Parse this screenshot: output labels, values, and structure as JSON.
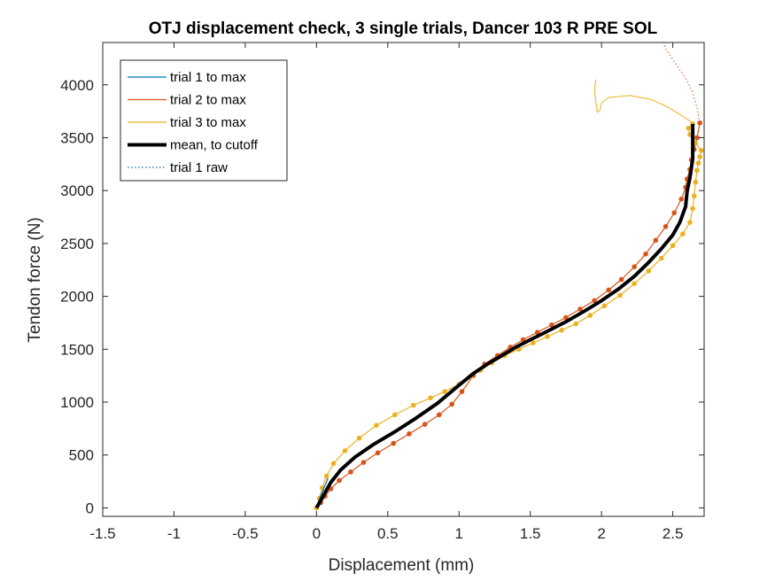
{
  "chart_data": {
    "type": "line",
    "title": "OTJ displacement check, 3 single trials, Dancer 103 R PRE SOL",
    "xlabel": "Displacement (mm)",
    "ylabel": "Tendon force (N)",
    "xlim": [
      -1.5,
      2.72
    ],
    "ylim": [
      -80,
      4400
    ],
    "xticks": [
      -1.5,
      -1,
      -0.5,
      0,
      0.5,
      1,
      1.5,
      2,
      2.5
    ],
    "xtick_labels": [
      "-1.5",
      "-1",
      "-0.5",
      "0",
      "0.5",
      "1",
      "1.5",
      "2",
      "2.5"
    ],
    "yticks": [
      0,
      500,
      1000,
      1500,
      2000,
      2500,
      3000,
      3500,
      4000
    ],
    "ytick_labels": [
      "0",
      "500",
      "1000",
      "1500",
      "2000",
      "2500",
      "3000",
      "3500",
      "4000"
    ],
    "grid": false,
    "legend_position": "top-left",
    "series": [
      {
        "name": "trial 1 to max",
        "color": "#0072BD",
        "style": "solid",
        "x": [
          0,
          0.02,
          0.05,
          0.08
        ],
        "y": [
          0,
          80,
          180,
          280
        ]
      },
      {
        "name": "trial 2 to max",
        "color": "#D95319",
        "style": "solid-dots",
        "x": [
          0,
          0.03,
          0.06,
          0.1,
          0.16,
          0.24,
          0.33,
          0.43,
          0.54,
          0.65,
          0.76,
          0.86,
          0.95,
          1.02,
          1.1,
          1.18,
          1.27,
          1.36,
          1.45,
          1.55,
          1.65,
          1.75,
          1.85,
          1.95,
          2.05,
          2.14,
          2.23,
          2.31,
          2.38,
          2.45,
          2.51,
          2.56,
          2.59,
          2.6,
          2.62,
          2.63,
          2.65,
          2.67,
          2.69
        ],
        "y": [
          0,
          50,
          110,
          180,
          260,
          340,
          430,
          520,
          610,
          700,
          790,
          880,
          980,
          1100,
          1250,
          1360,
          1440,
          1520,
          1590,
          1660,
          1730,
          1800,
          1880,
          1960,
          2060,
          2160,
          2280,
          2400,
          2530,
          2660,
          2790,
          2920,
          3030,
          3110,
          3200,
          3290,
          3390,
          3500,
          3640
        ]
      },
      {
        "name": "trial 3 to max",
        "color": "#EDB120",
        "style": "solid-dots",
        "x": [
          0,
          0.02,
          0.04,
          0.07,
          0.12,
          0.2,
          0.3,
          0.42,
          0.55,
          0.68,
          0.8,
          0.9,
          1.0,
          1.08,
          1.15,
          1.23,
          1.32,
          1.42,
          1.52,
          1.62,
          1.72,
          1.82,
          1.92,
          2.02,
          2.13,
          2.23,
          2.33,
          2.42,
          2.5,
          2.57,
          2.62,
          2.64,
          2.65,
          2.66,
          2.67,
          2.68,
          2.69,
          2.7,
          2.66,
          2.62,
          2.61,
          2.64
        ],
        "y": [
          0,
          90,
          190,
          300,
          420,
          540,
          660,
          780,
          880,
          970,
          1040,
          1100,
          1170,
          1240,
          1300,
          1370,
          1440,
          1500,
          1560,
          1620,
          1680,
          1740,
          1820,
          1910,
          2010,
          2120,
          2240,
          2360,
          2480,
          2590,
          2700,
          2830,
          2950,
          3080,
          3190,
          3260,
          3320,
          3380,
          3450,
          3530,
          3590,
          3630
        ]
      },
      {
        "name": "mean, to cutoff",
        "color": "#000000",
        "style": "thick-solid",
        "x": [
          0,
          0.05,
          0.1,
          0.17,
          0.27,
          0.4,
          0.55,
          0.7,
          0.85,
          1.0,
          1.1,
          1.2,
          1.3,
          1.4,
          1.5,
          1.62,
          1.75,
          1.88,
          2.0,
          2.12,
          2.23,
          2.33,
          2.42,
          2.5,
          2.55,
          2.59,
          2.6,
          2.62,
          2.64,
          2.64
        ],
        "y": [
          0,
          120,
          240,
          360,
          480,
          600,
          720,
          850,
          990,
          1160,
          1270,
          1360,
          1440,
          1520,
          1590,
          1670,
          1760,
          1860,
          1960,
          2070,
          2190,
          2320,
          2450,
          2580,
          2700,
          2850,
          2990,
          3120,
          3300,
          3630
        ]
      },
      {
        "name": "trial 1 raw",
        "color": "#0072BD",
        "style": "dotted",
        "x": [
          0,
          0.02,
          0.05
        ],
        "y": [
          0,
          80,
          170
        ]
      },
      {
        "name": "",
        "color": "#EDB120",
        "style": "thin-solid",
        "x": [
          2.64,
          2.55,
          2.45,
          2.35,
          2.2,
          2.05,
          2.0,
          1.99,
          1.97,
          1.96,
          1.95,
          1.96
        ],
        "y": [
          3640,
          3720,
          3800,
          3860,
          3900,
          3880,
          3830,
          3760,
          3740,
          3850,
          3940,
          4050
        ]
      },
      {
        "name": "",
        "color": "#D95319",
        "style": "thin-dotted",
        "x": [
          2.69,
          2.67,
          2.64,
          2.6,
          2.55,
          2.5,
          2.45,
          2.43
        ],
        "y": [
          3640,
          3780,
          3930,
          4040,
          4140,
          4240,
          4340,
          4420
        ]
      }
    ]
  }
}
